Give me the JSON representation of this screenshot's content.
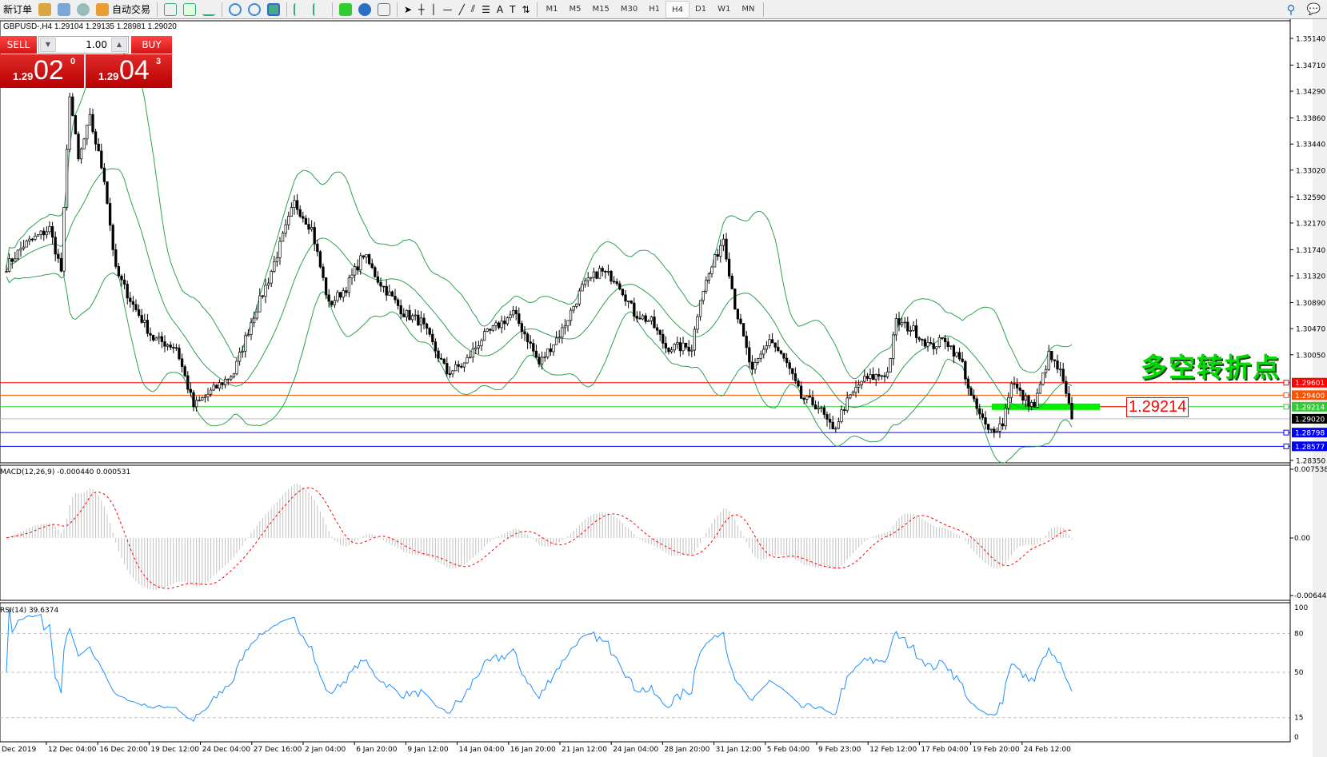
{
  "toolbar": {
    "new_order": "新订单",
    "auto_trading": "自动交易",
    "timeframes": [
      "M1",
      "M5",
      "M15",
      "M30",
      "H1",
      "H4",
      "D1",
      "W1",
      "MN"
    ],
    "selected_timeframe": "H4"
  },
  "chart": {
    "title": "GBPUSD-,H4  1.29104 1.29135 1.28981 1.29020"
  },
  "trade_panel": {
    "sell_label": "SELL",
    "buy_label": "BUY",
    "lots": "1.00",
    "sell_small": "1.29",
    "sell_big": "02",
    "sell_pip": "0",
    "buy_small": "1.29",
    "buy_big": "04",
    "buy_pip": "3"
  },
  "annotation": {
    "text": "多空转折点",
    "price_label": "1.29214"
  },
  "price_axis": [
    "1.35140",
    "1.34710",
    "1.34290",
    "1.33860",
    "1.33440",
    "1.33020",
    "1.32590",
    "1.32170",
    "1.31740",
    "1.31320",
    "1.30890",
    "1.30470",
    "1.30050",
    "1.28350"
  ],
  "levels": [
    {
      "price": "1.29601",
      "color": "#ff0000"
    },
    {
      "price": "1.29400",
      "color": "#ff5000"
    },
    {
      "price": "1.29214",
      "color": "#33cc33"
    },
    {
      "price": "1.29020",
      "color": "#000000"
    },
    {
      "price": "1.28798",
      "color": "#0000ff"
    },
    {
      "price": "1.28577",
      "color": "#0000ff"
    }
  ],
  "macd": {
    "label": "MACD(12,26,9) -0.000440 0.000531",
    "axis": [
      "0.007538",
      "0.00",
      "-0.006446"
    ]
  },
  "rsi": {
    "label": "RSI(14) 39.6374",
    "axis": [
      "100",
      "80",
      "50",
      "15",
      "0"
    ]
  },
  "time_axis": [
    "Dec 2019",
    "12 Dec 04:00",
    "16 Dec 20:00",
    "19 Dec 12:00",
    "24 Dec 04:00",
    "27 Dec 16:00",
    "2 Jan 04:00",
    "6 Jan 20:00",
    "9 Jan 12:00",
    "14 Jan 04:00",
    "16 Jan 20:00",
    "21 Jan 12:00",
    "24 Jan 04:00",
    "28 Jan 20:00",
    "31 Jan 12:00",
    "5 Feb 04:00",
    "9 Feb 23:00",
    "12 Feb 12:00",
    "17 Feb 04:00",
    "19 Feb 20:00",
    "24 Feb 12:00"
  ],
  "chart_data": {
    "type": "candlestick",
    "symbol": "GBPUSD-",
    "timeframe": "H4",
    "ylim": [
      1.2835,
      1.3514
    ],
    "close_path": [
      [
        0,
        1.3147
      ],
      [
        6,
        1.3181
      ],
      [
        15,
        1.3208
      ],
      [
        19,
        1.314
      ],
      [
        22,
        1.3426
      ],
      [
        25,
        1.3317
      ],
      [
        29,
        1.3385
      ],
      [
        34,
        1.3289
      ],
      [
        38,
        1.314
      ],
      [
        44,
        1.3085
      ],
      [
        51,
        1.3031
      ],
      [
        59,
        1.3017
      ],
      [
        65,
        1.2922
      ],
      [
        72,
        1.2949
      ],
      [
        79,
        1.2976
      ],
      [
        85,
        1.3058
      ],
      [
        91,
        1.3126
      ],
      [
        100,
        1.3249
      ],
      [
        106,
        1.3208
      ],
      [
        112,
        1.3085
      ],
      [
        118,
        1.3113
      ],
      [
        124,
        1.3167
      ],
      [
        129,
        1.3126
      ],
      [
        138,
        1.3072
      ],
      [
        144,
        1.3058
      ],
      [
        153,
        1.2976
      ],
      [
        159,
        1.299
      ],
      [
        165,
        1.3031
      ],
      [
        176,
        1.3072
      ],
      [
        181,
        1.3031
      ],
      [
        185,
        1.299
      ],
      [
        193,
        1.3045
      ],
      [
        200,
        1.3113
      ],
      [
        206,
        1.314
      ],
      [
        212,
        1.3126
      ],
      [
        218,
        1.3072
      ],
      [
        224,
        1.3058
      ],
      [
        229,
        1.3017
      ],
      [
        238,
        1.3017
      ],
      [
        241,
        1.3099
      ],
      [
        249,
        1.3194
      ],
      [
        253,
        1.3085
      ],
      [
        259,
        1.2976
      ],
      [
        265,
        1.3031
      ],
      [
        271,
        1.299
      ],
      [
        276,
        1.2936
      ],
      [
        282,
        1.2922
      ],
      [
        287,
        1.2881
      ],
      [
        291,
        1.2922
      ],
      [
        297,
        1.2963
      ],
      [
        306,
        1.2976
      ],
      [
        309,
        1.3058
      ],
      [
        315,
        1.3045
      ],
      [
        321,
        1.3017
      ],
      [
        326,
        1.3031
      ],
      [
        332,
        1.299
      ],
      [
        335,
        1.2936
      ],
      [
        341,
        1.2881
      ],
      [
        346,
        1.2895
      ],
      [
        349,
        1.2963
      ],
      [
        353,
        1.2936
      ],
      [
        357,
        1.2922
      ],
      [
        362,
        1.3004
      ],
      [
        366,
        1.2976
      ],
      [
        370,
        1.2902
      ]
    ]
  }
}
